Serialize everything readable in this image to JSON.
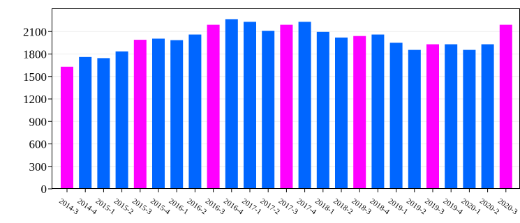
{
  "chart_data": {
    "type": "bar",
    "categories": [
      "2014-3",
      "2014-4",
      "2015-1",
      "2015-2",
      "2015-3",
      "2015-4",
      "2016-1",
      "2016-2",
      "2016-3",
      "2016-4",
      "2017-1",
      "2017-2",
      "2017-3",
      "2017-4",
      "2018-1",
      "2018-2",
      "2018-3",
      "2018-4",
      "2019-1",
      "2019-2",
      "2019-3",
      "2019-4",
      "2020-1",
      "2020-2",
      "2020-3"
    ],
    "values": [
      1630,
      1760,
      1745,
      1835,
      1990,
      2005,
      1985,
      2060,
      2190,
      2265,
      2230,
      2110,
      2190,
      2230,
      2095,
      2020,
      2040,
      2060,
      1950,
      1855,
      1930,
      1930,
      1855,
      1930,
      2190
    ],
    "highlighted": [
      true,
      false,
      false,
      false,
      true,
      false,
      false,
      false,
      true,
      false,
      false,
      false,
      true,
      false,
      false,
      false,
      true,
      false,
      false,
      false,
      true,
      false,
      false,
      false,
      true
    ],
    "colors": {
      "normal": "#0066ff",
      "highlight": "#ff00ff"
    },
    "yticks": [
      0,
      300,
      600,
      900,
      1200,
      1500,
      1800,
      2100
    ],
    "ylim": [
      0,
      2400
    ],
    "title": "",
    "xlabel": "",
    "ylabel": "",
    "grid": false,
    "legend": "none"
  }
}
